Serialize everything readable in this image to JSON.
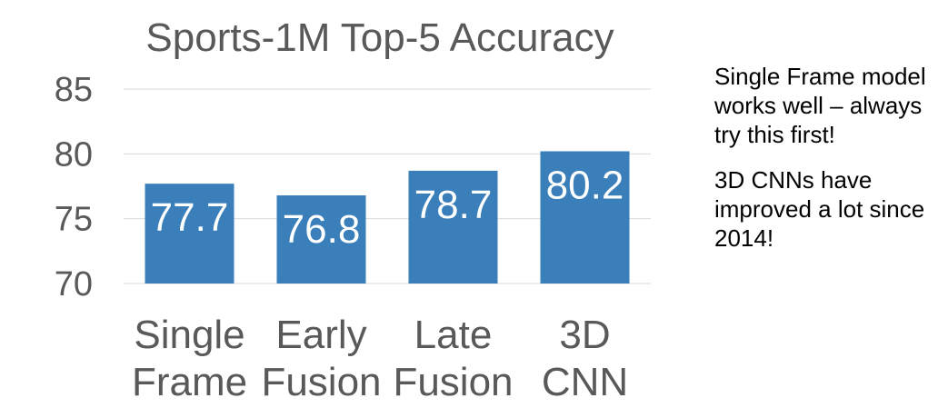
{
  "chart_data": {
    "type": "bar",
    "title": "Sports-1M Top-5 Accuracy",
    "categories": [
      [
        "Single",
        "Frame"
      ],
      [
        "Early",
        "Fusion"
      ],
      [
        "Late",
        "Fusion"
      ],
      [
        "3D",
        "CNN"
      ]
    ],
    "values": [
      77.7,
      76.8,
      78.7,
      80.2
    ],
    "data_labels": [
      "77.7",
      "76.8",
      "78.7",
      "80.2"
    ],
    "yticks": [
      "70",
      "75",
      "80",
      "85"
    ],
    "ylim": [
      70,
      85
    ],
    "grid": true,
    "bar_color": "#3a7fba"
  },
  "notes": [
    "Single Frame model works well – always try this first!",
    "3D CNNs have improved a lot since 2014!"
  ]
}
